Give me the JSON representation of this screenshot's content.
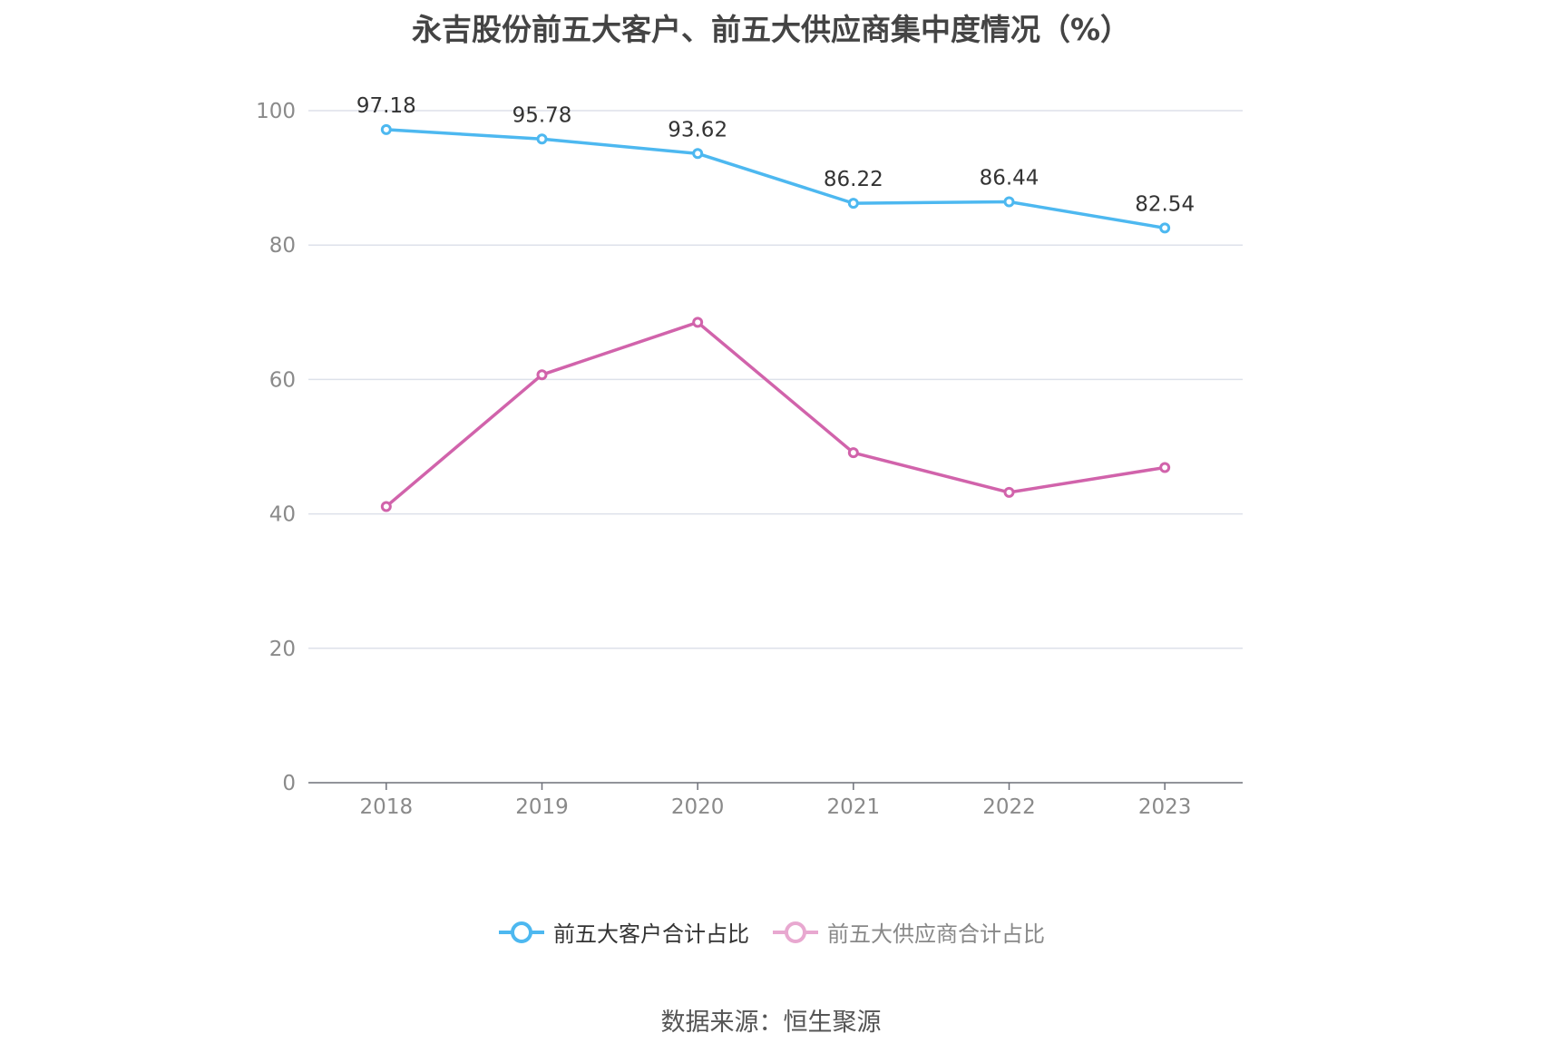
{
  "title": "永吉股份前五大客户、前五大供应商集中度情况（%）",
  "source": "数据来源：恒生聚源",
  "chart_data": {
    "type": "line",
    "categories": [
      "2018",
      "2019",
      "2020",
      "2021",
      "2022",
      "2023"
    ],
    "y_ticks": [
      "0",
      "20",
      "40",
      "60",
      "80",
      "100"
    ],
    "ylim": [
      0,
      100
    ],
    "grid": true,
    "legend_position": "bottom",
    "series": [
      {
        "name": "前五大客户合计占比",
        "color": "#4db8f0",
        "values": [
          97.18,
          95.78,
          93.62,
          86.22,
          86.44,
          82.54
        ],
        "data_labels": [
          "97.18",
          "95.78",
          "93.62",
          "86.22",
          "86.44",
          "82.54"
        ]
      },
      {
        "name": "前五大供应商合计占比",
        "color": "#d163ab",
        "values": [
          41.1,
          60.7,
          68.5,
          49.1,
          43.2,
          46.9
        ],
        "data_labels": []
      }
    ]
  }
}
